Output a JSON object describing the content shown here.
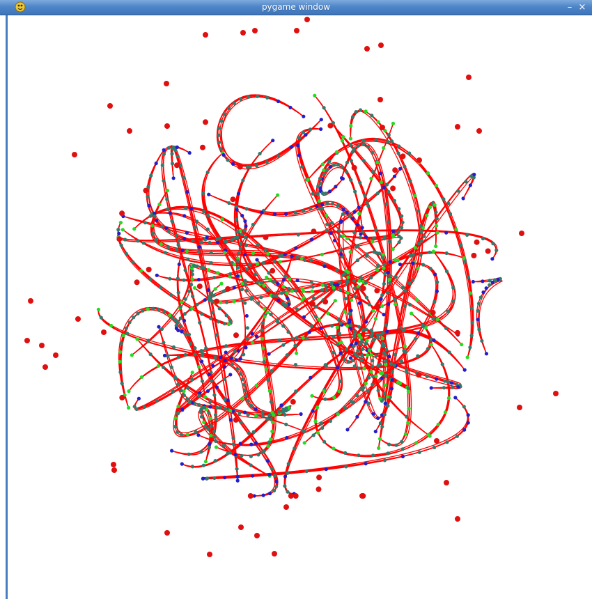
{
  "window": {
    "title": "pygame window",
    "minimize_label": "–",
    "close_label": "×",
    "icon": "python-icon"
  },
  "canvas": {
    "background": "#ffffff",
    "colors": {
      "curve": "#ff0000",
      "node_blue": "#1f1fcc",
      "node_green": "#22dd22",
      "node_teal": "#2e7d6e",
      "particle": "#e01010"
    }
  }
}
